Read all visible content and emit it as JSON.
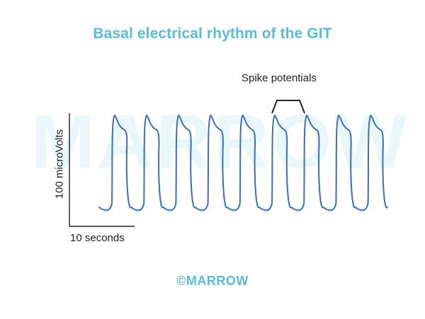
{
  "title": "Basal electrical rhythm of the GIT",
  "watermark": "MARROW",
  "annotation": {
    "spike_label": "Spike potentials"
  },
  "scale": {
    "y_label": "100 microVolts",
    "x_label": "10 seconds"
  },
  "footer": "©MARROW",
  "colors": {
    "title": "#5bbcd3",
    "trace": "#3a6fb8",
    "text": "#222222",
    "watermark": "#e6f5fa"
  },
  "chart_data": {
    "type": "line",
    "title": "Basal electrical rhythm of the GIT",
    "cycles": 9,
    "y_scale_bar_label": "100 microVolts",
    "x_scale_bar_label": "10 seconds",
    "annotations": [
      "Spike potentials"
    ]
  }
}
